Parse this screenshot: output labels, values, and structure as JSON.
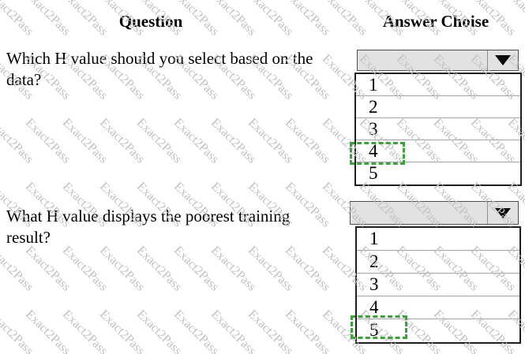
{
  "watermark": {
    "text": "Exact2Pass"
  },
  "headers": {
    "question_col": "Question",
    "answer_col": "Answer Choise"
  },
  "colors": {
    "highlight_green": "#3da23d"
  },
  "questions": [
    {
      "text": "Which H value should you select based on the data?",
      "options": [
        "1",
        "2",
        "3",
        "4",
        "5"
      ],
      "highlighted_option": "4"
    },
    {
      "text": "What H value displays the poorest training result?",
      "options": [
        "1",
        "2",
        "3",
        "4",
        "5"
      ],
      "highlighted_option": "5"
    }
  ]
}
